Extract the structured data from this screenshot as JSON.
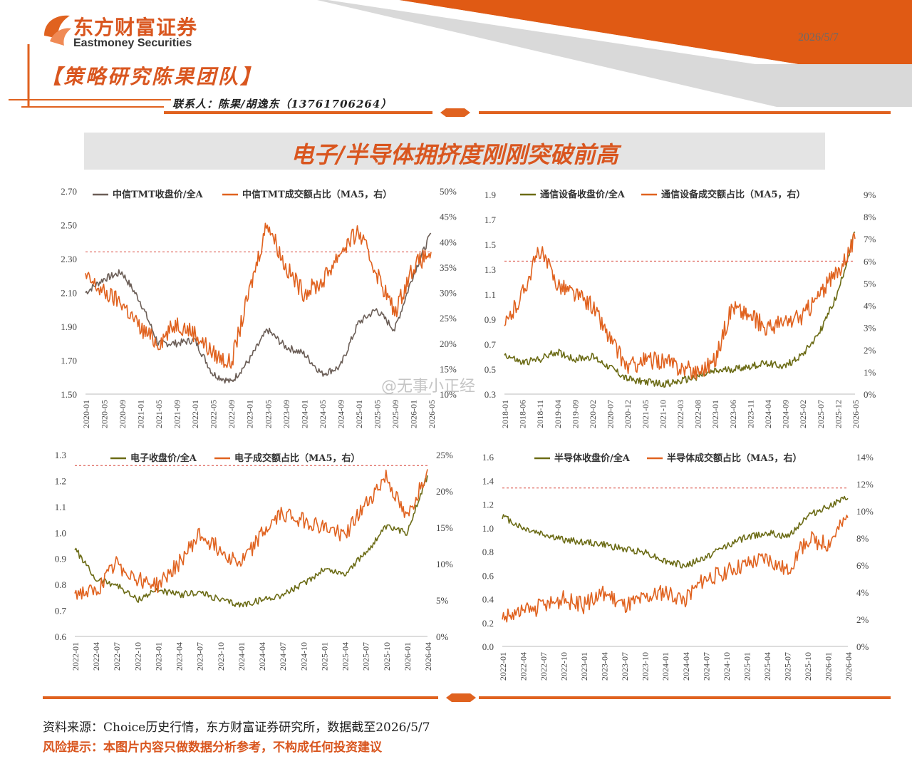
{
  "header": {
    "logo_cn": "东方财富证券",
    "logo_en": "Eastmoney Securities",
    "date": "2026/5/7",
    "team": "【策略研究陈果团队】",
    "contact": "联系人：陈果/胡逸东（13761706264）",
    "title": "电子/半导体拥挤度刚刚突破前高"
  },
  "footer": {
    "source": "资料来源：Choice历史行情，东方财富证券研究所，数据截至2026/5/7",
    "risk": "风险提示：本图片内容只做数据分析参考，不构成任何投资建议"
  },
  "watermark": "@无事小正经",
  "colors": {
    "accent": "#e0621f",
    "price_tmt": "#6b5e57",
    "price_olive": "#6b6b15",
    "orange": "#e0621f",
    "ref": "#d8463a"
  },
  "chart_data": [
    {
      "type": "line",
      "x": [
        "2020-01",
        "2020-05",
        "2020-09",
        "2021-01",
        "2021-05",
        "2021-09",
        "2022-01",
        "2022-05",
        "2022-09",
        "2023-01",
        "2023-05",
        "2023-09",
        "2024-01",
        "2024-05",
        "2024-09",
        "2025-01",
        "2025-05",
        "2025-09",
        "2026-01",
        "2026-05"
      ],
      "ylim": [
        1.5,
        2.7
      ],
      "y_ticks": [
        "1.50",
        "1.70",
        "1.90",
        "2.10",
        "2.30",
        "2.50",
        "2.70"
      ],
      "y2lim": [
        0.1,
        0.5
      ],
      "y2_ticks": [
        "10%",
        "15%",
        "20%",
        "25%",
        "30%",
        "35%",
        "40%",
        "45%",
        "50%"
      ],
      "ref_line_y2": 0.38,
      "series": [
        {
          "name": "中信TMT收盘价/全A",
          "axis": "left",
          "color": "#6b5e57",
          "values": [
            2.1,
            2.18,
            2.22,
            2.05,
            1.8,
            1.8,
            1.82,
            1.62,
            1.57,
            1.7,
            1.88,
            1.78,
            1.74,
            1.62,
            1.66,
            1.92,
            2.0,
            1.88,
            2.2,
            2.45
          ]
        },
        {
          "name": "中信TMT成交额占比（MA5，右）",
          "axis": "right",
          "color": "#e0621f",
          "values": [
            0.33,
            0.3,
            0.28,
            0.23,
            0.2,
            0.24,
            0.22,
            0.18,
            0.16,
            0.3,
            0.44,
            0.35,
            0.3,
            0.32,
            0.38,
            0.42,
            0.34,
            0.26,
            0.35,
            0.38
          ]
        }
      ]
    },
    {
      "type": "line",
      "x": [
        "2018-01",
        "2018-06",
        "2018-11",
        "2019-04",
        "2019-09",
        "2020-02",
        "2020-07",
        "2020-12",
        "2021-05",
        "2021-10",
        "2022-03",
        "2022-08",
        "2023-01",
        "2023-06",
        "2023-11",
        "2024-04",
        "2024-09",
        "2025-02",
        "2025-07",
        "2025-12",
        "2026-05"
      ],
      "ylim": [
        0.3,
        1.9
      ],
      "y_ticks": [
        "0.3",
        "0.5",
        "0.7",
        "0.9",
        "1.1",
        "1.3",
        "1.5",
        "1.7",
        "1.9"
      ],
      "y2lim": [
        0,
        0.09
      ],
      "y2_ticks": [
        "0%",
        "1%",
        "2%",
        "3%",
        "4%",
        "5%",
        "6%",
        "7%",
        "8%",
        "9%"
      ],
      "ref_line_y2": 0.06,
      "series": [
        {
          "name": "通信设备收盘价/全A",
          "axis": "left",
          "color": "#6b6b15",
          "values": [
            0.62,
            0.55,
            0.58,
            0.64,
            0.58,
            0.6,
            0.52,
            0.42,
            0.4,
            0.38,
            0.4,
            0.44,
            0.48,
            0.5,
            0.52,
            0.55,
            0.52,
            0.62,
            0.8,
            1.1,
            1.6
          ]
        },
        {
          "name": "通信设备成交额占比（MA5，右）",
          "axis": "right",
          "color": "#e0621f",
          "values": [
            0.03,
            0.045,
            0.065,
            0.05,
            0.045,
            0.04,
            0.025,
            0.012,
            0.015,
            0.015,
            0.012,
            0.01,
            0.015,
            0.04,
            0.035,
            0.03,
            0.032,
            0.035,
            0.045,
            0.055,
            0.07
          ]
        }
      ]
    },
    {
      "type": "line",
      "x": [
        "2022-01",
        "2022-04",
        "2022-07",
        "2022-10",
        "2023-01",
        "2023-04",
        "2023-07",
        "2023-10",
        "2024-01",
        "2024-04",
        "2024-07",
        "2024-10",
        "2025-01",
        "2025-04",
        "2025-07",
        "2025-10",
        "2026-01",
        "2026-04"
      ],
      "ylim": [
        0.6,
        1.3
      ],
      "y_ticks": [
        "0.6",
        "0.7",
        "0.8",
        "0.9",
        "1.0",
        "1.1",
        "1.2",
        "1.3"
      ],
      "y2lim": [
        0,
        0.25
      ],
      "y2_ticks": [
        "0%",
        "5%",
        "10%",
        "15%",
        "20%",
        "25%"
      ],
      "ref_line_y2": 0.235,
      "series": [
        {
          "name": "电子收盘价/全A",
          "axis": "left",
          "color": "#6b6b15",
          "values": [
            0.94,
            0.82,
            0.8,
            0.74,
            0.78,
            0.76,
            0.77,
            0.74,
            0.72,
            0.74,
            0.76,
            0.8,
            0.86,
            0.84,
            0.92,
            1.02,
            1.0,
            1.22
          ]
        },
        {
          "name": "电子成交额占比（MA5，右）",
          "axis": "right",
          "color": "#e0621f",
          "values": [
            0.06,
            0.06,
            0.1,
            0.08,
            0.07,
            0.1,
            0.14,
            0.12,
            0.1,
            0.14,
            0.17,
            0.16,
            0.15,
            0.14,
            0.18,
            0.22,
            0.16,
            0.23
          ]
        }
      ]
    },
    {
      "type": "line",
      "x": [
        "2022-01",
        "2022-04",
        "2022-07",
        "2022-10",
        "2023-01",
        "2023-04",
        "2023-07",
        "2023-10",
        "2024-01",
        "2024-04",
        "2024-07",
        "2024-10",
        "2025-01",
        "2025-04",
        "2025-07",
        "2025-10",
        "2026-01",
        "2026-04"
      ],
      "ylim": [
        0,
        1.6
      ],
      "y_ticks": [
        "0.0",
        "0.2",
        "0.4",
        "0.6",
        "0.8",
        "1.0",
        "1.2",
        "1.4",
        "1.6"
      ],
      "y2lim": [
        0,
        0.14
      ],
      "y2_ticks": [
        "0%",
        "2%",
        "4%",
        "6%",
        "8%",
        "10%",
        "12%",
        "14%"
      ],
      "ref_line_y2": 0.117,
      "series": [
        {
          "name": "半导体收盘价/全A",
          "axis": "left",
          "color": "#6b6b15",
          "values": [
            1.1,
            1.0,
            0.95,
            0.9,
            0.88,
            0.86,
            0.82,
            0.8,
            0.72,
            0.68,
            0.75,
            0.85,
            0.92,
            0.96,
            0.92,
            1.1,
            1.18,
            1.25
          ]
        },
        {
          "name": "半导体成交额占比（MA5，右）",
          "axis": "right",
          "color": "#e0621f",
          "values": [
            0.022,
            0.025,
            0.03,
            0.035,
            0.03,
            0.04,
            0.03,
            0.035,
            0.04,
            0.035,
            0.05,
            0.055,
            0.06,
            0.065,
            0.055,
            0.08,
            0.075,
            0.095
          ]
        }
      ]
    }
  ]
}
